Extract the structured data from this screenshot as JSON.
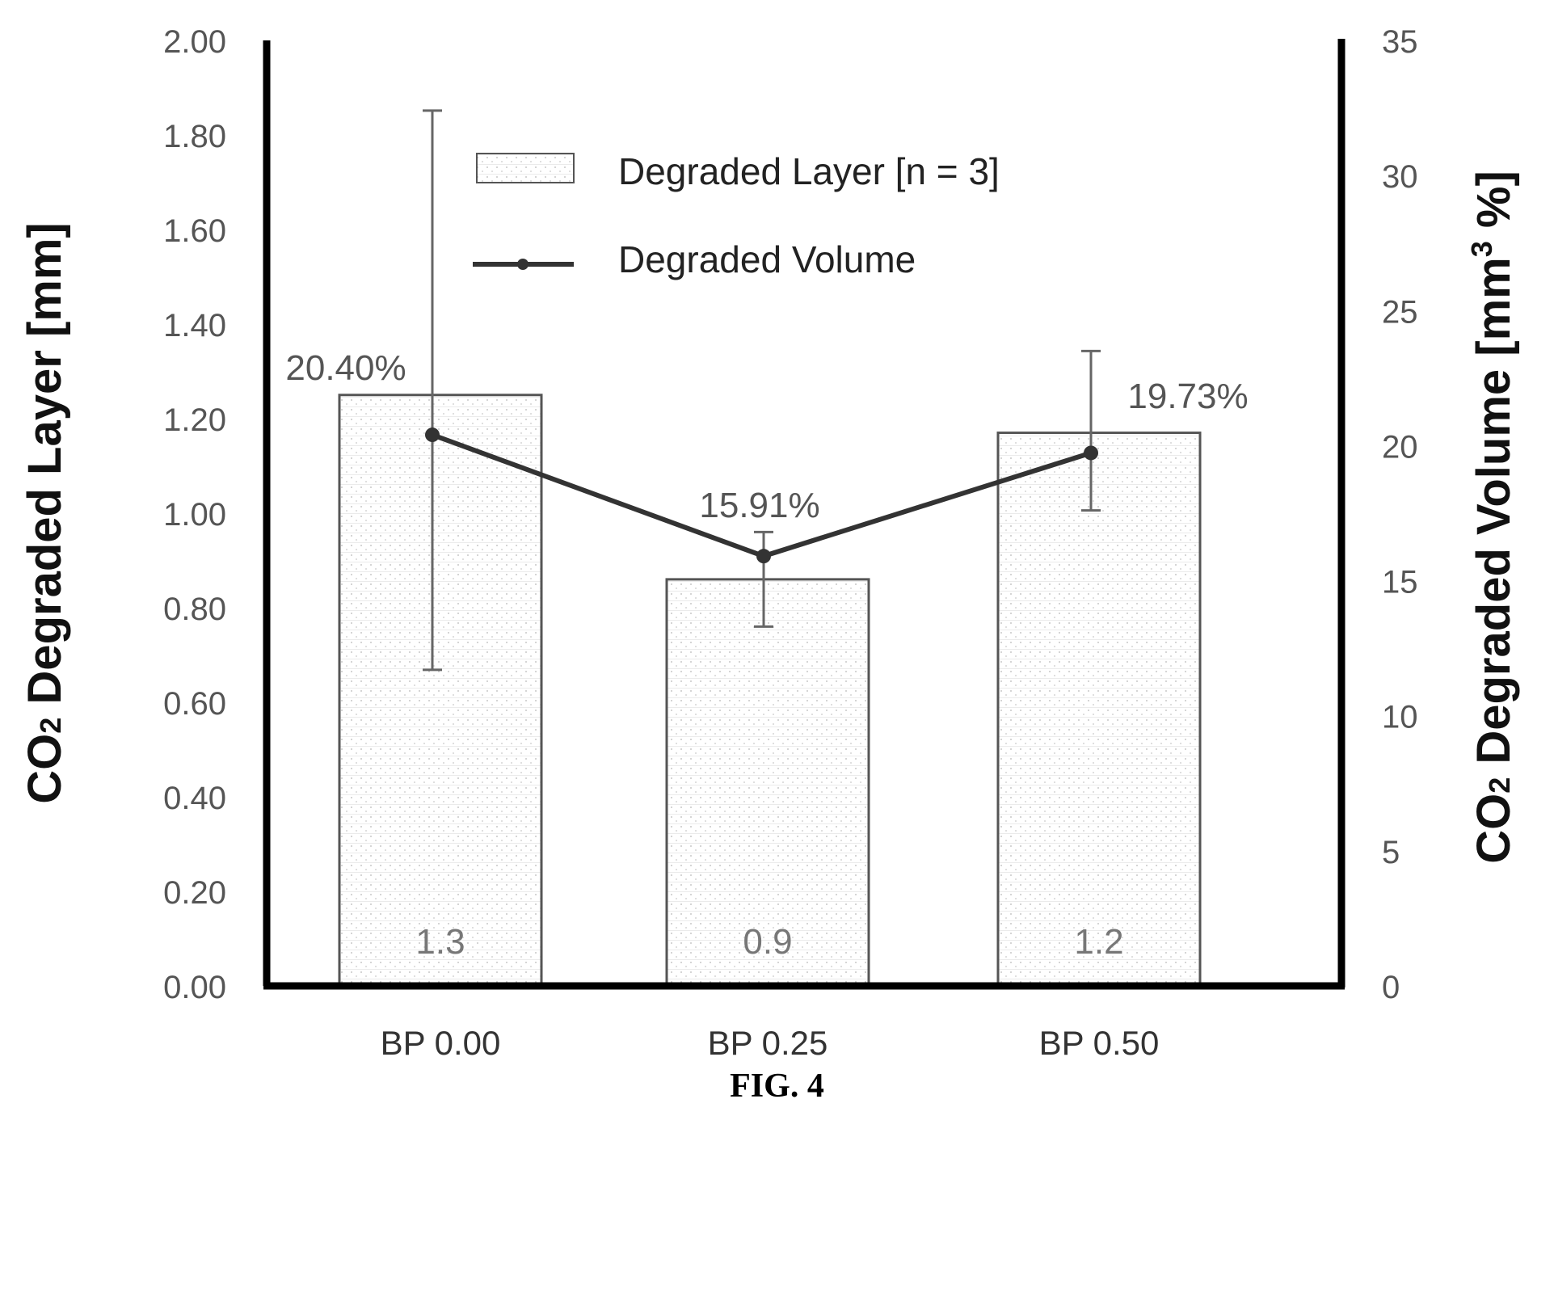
{
  "figure": {
    "caption": "FIG. 4"
  },
  "chart_data": {
    "type": "bar",
    "categories": [
      "BP 0.00",
      "BP 0.25",
      "BP 0.50"
    ],
    "legend_position": "top-center",
    "grid": false,
    "y_left": {
      "label_main": "CO",
      "label_sub": "2",
      "label_rest": " Degraded Layer [mm]",
      "ylim": [
        0,
        2
      ],
      "ticks": [
        "0.00",
        "0.20",
        "0.40",
        "0.60",
        "0.80",
        "1.00",
        "1.20",
        "1.40",
        "1.60",
        "1.80",
        "2.00"
      ]
    },
    "y_right": {
      "label_main": "CO",
      "label_sub": "2",
      "label_mid": " Degraded Volume [mm",
      "label_sup": "3",
      "label_end": " %]",
      "ylim": [
        0,
        35
      ],
      "ticks": [
        "0",
        "5",
        "10",
        "15",
        "20",
        "25",
        "30",
        "35"
      ]
    },
    "series": [
      {
        "name": "Degraded Layer [n = 3]",
        "type": "bar",
        "axis": "left",
        "values": [
          1.25,
          0.86,
          1.17
        ],
        "labels": [
          "1.3",
          "0.9",
          "1.2"
        ]
      },
      {
        "name": "Degraded Volume",
        "type": "line",
        "axis": "right",
        "values": [
          20.4,
          15.91,
          19.73
        ],
        "labels": [
          "20.40%",
          "15.91%",
          "19.73%"
        ],
        "error_low": [
          11.7,
          13.3,
          17.6
        ],
        "error_high": [
          32.4,
          16.8,
          23.5
        ]
      }
    ]
  }
}
